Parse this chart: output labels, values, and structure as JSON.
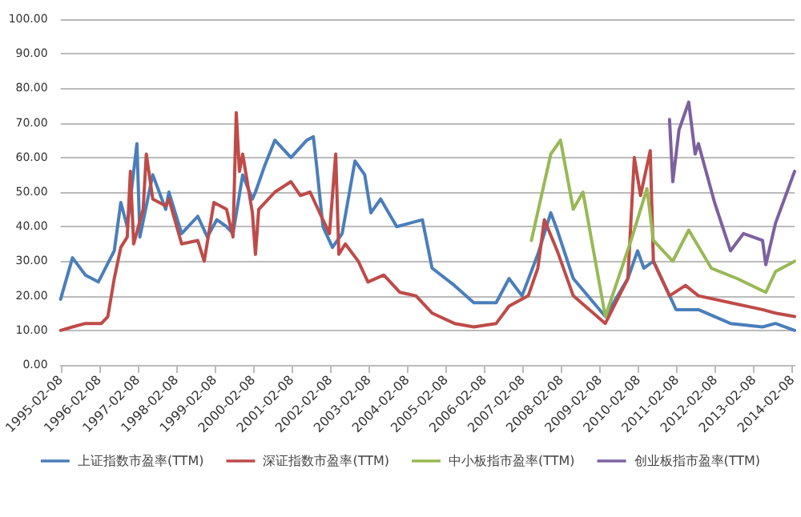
{
  "chart_data": {
    "type": "line",
    "xlim": [
      "1995-02-08",
      "2014-03"
    ],
    "xticks": [
      "1995-02-08",
      "1996-02-08",
      "1997-02-08",
      "1998-02-08",
      "1999-02-08",
      "2000-02-08",
      "2001-02-08",
      "2002-02-08",
      "2003-02-08",
      "2004-02-08",
      "2005-02-08",
      "2006-02-08",
      "2007-02-08",
      "2008-02-08",
      "2009-02-08",
      "2010-02-08",
      "2011-02-08",
      "2012-02-08",
      "2013-02-08",
      "2014-02-08"
    ],
    "ylim": [
      0,
      100
    ],
    "yticks": [
      {
        "value": 0,
        "label": "0.00"
      },
      {
        "value": 10,
        "label": "10.00"
      },
      {
        "value": 20,
        "label": "20.00"
      },
      {
        "value": 30,
        "label": "30.00"
      },
      {
        "value": 40,
        "label": "40.00"
      },
      {
        "value": 50,
        "label": "50.00"
      },
      {
        "value": 60,
        "label": "60.00"
      },
      {
        "value": 70,
        "label": "70.00"
      },
      {
        "value": 80,
        "label": "80.00"
      },
      {
        "value": 90,
        "label": "90.00"
      },
      {
        "value": 100,
        "label": "100.00"
      }
    ],
    "grid": "y",
    "legend": "bottom",
    "marker": "none",
    "line_style": "solid",
    "series": [
      {
        "name": "上证指数市盈率(TTM)",
        "color": "#4a7ebb",
        "x": [
          "1995-02-08",
          "1995-06",
          "1995-10",
          "1996-02",
          "1996-07",
          "1996-09",
          "1996-11",
          "1997-02",
          "1997-03",
          "1997-07",
          "1997-11",
          "1997-12",
          "1998-04",
          "1998-09",
          "1998-12",
          "1999-03",
          "1999-06",
          "1999-08",
          "1999-11",
          "2000-02",
          "2000-03",
          "2000-06",
          "2000-09",
          "2001-02",
          "2001-07",
          "2001-09",
          "2001-10",
          "2001-12",
          "2002-03",
          "2002-06",
          "2002-10",
          "2003-01",
          "2003-03",
          "2003-06",
          "2003-11",
          "2004-07",
          "2004-10",
          "2005-05",
          "2005-11",
          "2006-06",
          "2006-10",
          "2007-02",
          "2007-07",
          "2007-11",
          "2008-01",
          "2008-06",
          "2009-04",
          "2009-11",
          "2010-02",
          "2010-04",
          "2010-07",
          "2010-11",
          "2011-02",
          "2011-09",
          "2012-07",
          "2013-05",
          "2013-09",
          "2014-03"
        ],
        "values": [
          19,
          31,
          26,
          24,
          33,
          47,
          40,
          64,
          37,
          55,
          45,
          50,
          38,
          43,
          37,
          42,
          40,
          38,
          55,
          48,
          50,
          58,
          65,
          60,
          65,
          66,
          58,
          40,
          34,
          38,
          59,
          55,
          44,
          48,
          40,
          42,
          28,
          23,
          18,
          18,
          25,
          20,
          32,
          44,
          39,
          25,
          14,
          25,
          33,
          28,
          30,
          22,
          16,
          16,
          12,
          11,
          12,
          10
        ]
      },
      {
        "name": "深证指数市盈率(TTM)",
        "color": "#be4b48",
        "x": [
          "1995-02-08",
          "1995-06",
          "1995-10",
          "1996-03",
          "1996-05",
          "1996-07",
          "1996-09",
          "1996-11",
          "1996-12",
          "1997-01",
          "1997-04",
          "1997-05",
          "1997-07",
          "1997-11",
          "1997-12",
          "1998-04",
          "1998-09",
          "1998-11",
          "1999-02",
          "1999-06",
          "1999-08",
          "1999-09",
          "1999-10",
          "1999-11",
          "2000-02",
          "2000-03",
          "2000-04",
          "2000-09",
          "2001-02",
          "2001-05",
          "2001-08",
          "2001-12",
          "2002-02",
          "2002-04",
          "2002-05",
          "2002-07",
          "2002-11",
          "2003-02",
          "2003-07",
          "2003-12",
          "2004-05",
          "2004-10",
          "2005-05",
          "2005-11",
          "2006-06",
          "2006-10",
          "2007-04",
          "2007-07",
          "2007-09",
          "2008-01",
          "2008-06",
          "2009-04",
          "2009-11",
          "2010-01",
          "2010-03",
          "2010-06",
          "2010-07",
          "2010-12",
          "2011-05",
          "2011-09",
          "2012-07",
          "2013-05",
          "2013-09",
          "2014-03"
        ],
        "values": [
          10,
          11,
          12,
          12,
          14,
          25,
          34,
          37,
          56,
          35,
          45,
          61,
          48,
          46,
          48,
          35,
          36,
          30,
          47,
          45,
          37,
          73,
          56,
          61,
          44,
          32,
          45,
          50,
          53,
          49,
          50,
          42,
          38,
          61,
          32,
          35,
          30,
          24,
          26,
          21,
          20,
          15,
          12,
          11,
          12,
          17,
          20,
          28,
          42,
          33,
          20,
          12,
          25,
          60,
          49,
          62,
          30,
          20,
          23,
          20,
          18,
          16,
          15,
          14
        ]
      },
      {
        "name": "中小板指市盈率(TTM)",
        "color": "#98b954",
        "x": [
          "2007-05",
          "2007-11",
          "2008-02",
          "2008-06",
          "2008-09",
          "2009-04",
          "2009-12",
          "2010-05",
          "2010-07",
          "2011-01",
          "2011-06",
          "2012-01",
          "2012-09",
          "2013-06",
          "2013-09",
          "2014-03"
        ],
        "values": [
          36,
          61,
          65,
          45,
          50,
          14,
          36,
          51,
          36,
          30,
          39,
          28,
          25,
          21,
          27,
          30
        ]
      },
      {
        "name": "创业板指市盈率(TTM)",
        "color": "#7d60a0",
        "x": [
          "2010-12",
          "2011-01",
          "2011-03",
          "2011-06",
          "2011-08",
          "2011-09",
          "2012-02",
          "2012-07",
          "2012-11",
          "2013-05",
          "2013-06",
          "2013-09",
          "2014-03"
        ],
        "values": [
          71,
          53,
          68,
          76,
          61,
          64,
          47,
          33,
          38,
          36,
          29,
          41,
          56
        ]
      }
    ]
  }
}
